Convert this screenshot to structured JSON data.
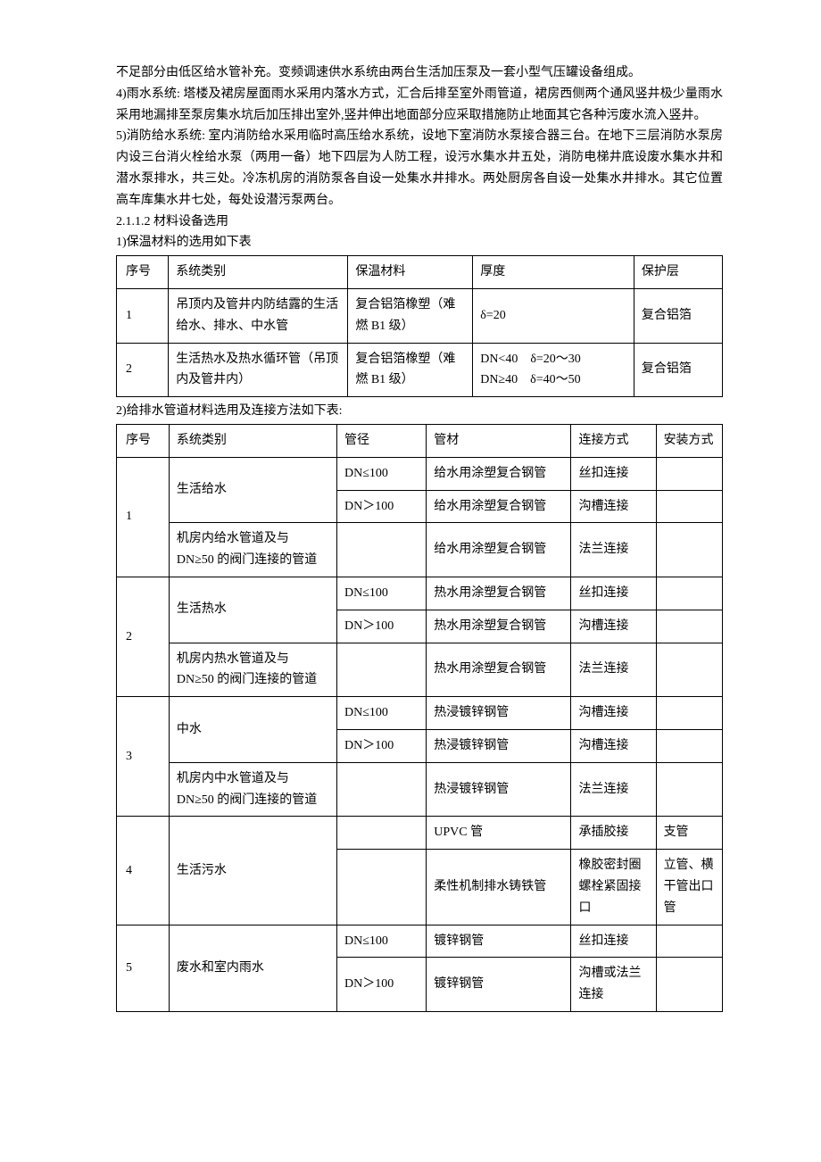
{
  "paragraphs": {
    "p1": "不足部分由低区给水管补充。变频调速供水系统由两台生活加压泵及一套小型气压罐设备组成。",
    "p2": "4)雨水系统: 塔楼及裙房屋面雨水采用内落水方式，汇合后排至室外雨管道，裙房西侧两个通风竖井极少量雨水采用地漏排至泵房集水坑后加压排出室外,竖井伸出地面部分应采取措施防止地面其它各种污废水流入竖井。",
    "p3": "5)消防给水系统: 室内消防给水采用临时高压给水系统，设地下室消防水泵接合器三台。在地下三层消防水泵房内设三台消火栓给水泵（两用一备）地下四层为人防工程，设污水集水井五处，消防电梯井底设废水集水井和潜水泵排水，共三处。冷冻机房的消防泵各自设一处集水井排水。两处厨房各自设一处集水井排水。其它位置高车库集水井七处，每处设潜污泵两台。",
    "p4": "2.1.1.2 材料设备选用",
    "p5": "1)保温材料的选用如下表",
    "p6": "2)给排水管道材料选用及连接方法如下表:"
  },
  "table1": {
    "header": [
      "序号",
      "系统类别",
      "保温材料",
      "厚度",
      "保护层"
    ],
    "rows": [
      {
        "n": "1",
        "cat": "吊顶内及管井内防结露的生活给水、排水、中水管",
        "mat": "复合铝箔橡塑（难燃 B1 级）",
        "thk": "δ=20",
        "prot": "复合铝箔"
      },
      {
        "n": "2",
        "cat": "生活热水及热水循环管（吊顶内及管井内）",
        "mat": "复合铝箔橡塑（难燃 B1 级）",
        "thk": "DN<40　δ=20～30\nDN≥40　δ=40～50",
        "prot": "复合铝箔"
      }
    ]
  },
  "table2": {
    "header": [
      "序号",
      "系统类别",
      "管径",
      "管材",
      "连接方式",
      "安装方式"
    ],
    "groups": [
      {
        "n": "1",
        "rows": [
          {
            "cat": "生活给水",
            "dia": "DN≤100",
            "mat": "给水用涂塑复合钢管",
            "conn": "丝扣连接",
            "inst": "",
            "catSpan": 2
          },
          {
            "cat": "",
            "dia": "DN＞100",
            "mat": "给水用涂塑复合钢管",
            "conn": "沟槽连接",
            "inst": ""
          },
          {
            "cat": "机房内给水管道及与 DN≥50 的阀门连接的管道",
            "dia": "",
            "mat": "给水用涂塑复合钢管",
            "conn": "法兰连接",
            "inst": "",
            "catSpan": 1
          }
        ]
      },
      {
        "n": "2",
        "rows": [
          {
            "cat": "生活热水",
            "dia": "DN≤100",
            "mat": "热水用涂塑复合钢管",
            "conn": "丝扣连接",
            "inst": "",
            "catSpan": 2
          },
          {
            "cat": "",
            "dia": "DN＞100",
            "mat": "热水用涂塑复合钢管",
            "conn": "沟槽连接",
            "inst": ""
          },
          {
            "cat": "机房内热水管道及与 DN≥50 的阀门连接的管道",
            "dia": "",
            "mat": "热水用涂塑复合钢管",
            "conn": "法兰连接",
            "inst": "",
            "catSpan": 1
          }
        ]
      },
      {
        "n": "3",
        "rows": [
          {
            "cat": "中水",
            "dia": "DN≤100",
            "mat": "热浸镀锌钢管",
            "conn": "沟槽连接",
            "inst": "",
            "catSpan": 2
          },
          {
            "cat": "",
            "dia": "DN＞100",
            "mat": "热浸镀锌钢管",
            "conn": "沟槽连接",
            "inst": ""
          },
          {
            "cat": "机房内中水管道及与 DN≥50 的阀门连接的管道",
            "dia": "",
            "mat": "热浸镀锌钢管",
            "conn": "法兰连接",
            "inst": "",
            "catSpan": 1
          }
        ]
      },
      {
        "n": "4",
        "rows": [
          {
            "cat": "生活污水",
            "dia": "",
            "mat": "UPVC 管",
            "conn": "承插胶接",
            "inst": "支管",
            "catSpan": 2
          },
          {
            "cat": "",
            "dia": "",
            "mat": "柔性机制排水铸铁管",
            "conn": "橡胶密封圈螺栓紧固接口",
            "inst": "立管、横干管出口管"
          }
        ]
      },
      {
        "n": "5",
        "rows": [
          {
            "cat": "废水和室内雨水",
            "dia": "DN≤100",
            "mat": "镀锌钢管",
            "conn": "丝扣连接",
            "inst": "",
            "catSpan": 2
          },
          {
            "cat": "",
            "dia": "DN＞100",
            "mat": "镀锌钢管",
            "conn": "沟槽或法兰连接",
            "inst": ""
          }
        ]
      }
    ]
  }
}
